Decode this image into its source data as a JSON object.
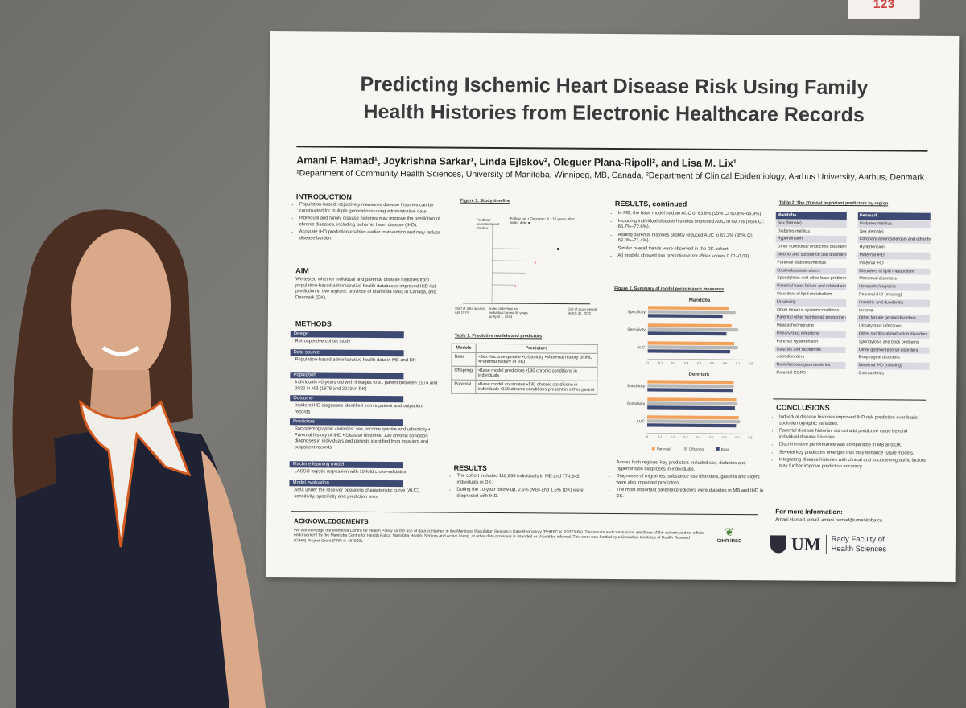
{
  "tag_number": "123",
  "poster": {
    "title_line1": "Predicting Ischemic Heart Disease Risk Using Family",
    "title_line2": "Health Histories from Electronic Healthcare Records",
    "authors": "Amani F. Hamad¹, Joykrishna Sarkar¹, Linda Ejlskov², Oleguer Plana-Ripoll², and Lisa M. Lix¹",
    "affiliation": "¹Department of Community Health Sciences, University of Manitoba, Winnipeg, MB, Canada, ²Department of Clinical Epidemiology, Aarhus University, Aarhus, Denmark",
    "introduction": {
      "heading": "INTRODUCTION",
      "bullets": [
        "Population-based, objectively measured disease histories can be constructed for multiple generations using administrative data.",
        "Individual and family disease histories may improve the prediction of chronic diseases, including ischemic heart disease (IHD).",
        "Accurate IHD prediction enables earlier intervention and may reduce disease burden."
      ]
    },
    "aim": {
      "heading": "AIM",
      "text": "We tested whether individual and parental disease histories from population-based administrative health databases improved IHD risk prediction in two regions: province of Manitoba (MB) in Canada, and Denmark (DK)."
    },
    "methods": {
      "heading": "METHODS",
      "blocks": [
        {
          "head": "Design",
          "text": "Retrospective cohort study"
        },
        {
          "head": "Data source",
          "text": "Population-based administrative health data in MB and DK"
        },
        {
          "head": "Population",
          "text": "Individuals 40 years old with linkages to ≥1 parent between 1974 and 2022 in MB (1978 and 2023 in DK)"
        },
        {
          "head": "Outcome",
          "text": "Incident IHD diagnoses identified from inpatient and outpatient records"
        },
        {
          "head": "Predictors",
          "text": "Sociodemographic variables: sex, income quintile and urbanicity • Parental history of IHD • Disease histories: 130 chronic condition diagnoses in individuals and parents identified from inpatient and outpatient records"
        },
        {
          "head": "Machine learning model",
          "text": "LASSO logistic regression with 10-fold cross-validation"
        },
        {
          "head": "Model evaluation",
          "text": "Area under the receiver operating characteristic curve (AUC), sensitivity, specificity and prediction error"
        }
      ]
    },
    "figure1": {
      "caption": "Figure 1. Study timeline",
      "labels": [
        "Predictor ascertainment window",
        "Follow up: • Outcome: X • 10 years after index date ●",
        "Start of data access Apr 1970",
        "Index date Year an individual turned 40 years or April 1, 1974",
        "End of study period March 31, 2022"
      ]
    },
    "table1": {
      "caption": "Table 1. Predictive models and predictors",
      "headers": [
        "Models",
        "Predictors"
      ],
      "rows": [
        {
          "model": "Base",
          "predictors": "•Sex  •Income quintile  •Urbanicity  •Maternal history of IHD  •Paternal history of IHD"
        },
        {
          "model": "Offspring",
          "predictors": "•Base model predictors  •130 chronic conditions in individuals"
        },
        {
          "model": "Parental",
          "predictors": "•Base model covariates  •130 chronic conditions in individuals  •130 chronic conditions present in either parent"
        }
      ]
    },
    "results": {
      "heading": "RESULTS",
      "bullets": [
        "The cohort included 118,868 individuals in MB and 774,845 individuals in DK.",
        "During the 10-year follow-up, 2.5% (MB) and 1.5% (DK) were diagnosed with IHD."
      ]
    },
    "results_cont": {
      "heading": "RESULTS, continued",
      "bullets": [
        "In MB, the base model had an AUC of 63.8% (95% CI 60.8%–66.9%).",
        "Including individual disease histories improved AUC to 69.7% (95% CI: 66.7%–72.6%).",
        "Adding parental histories slightly reduced AUC to 67.2% (95% CI: 63.0%–71.4%).",
        "Similar overall trends were observed in the DK cohort.",
        "All models showed low prediction error (Brier scores 0.01–0.03)."
      ],
      "after_bullets": [
        "Across both regions, key predictors included sex, diabetes and hypertension diagnoses in individuals.",
        "Diagnoses of migraines, substance use disorders, gastritis and ulcers were also important predictors.",
        "The most important parental predictors were diabetes in MB and IHD in DK."
      ]
    },
    "figure2": {
      "caption": "Figure 2. Summary of model performance measures"
    },
    "table2": {
      "caption": "Table 2. The 20 most important predictors by region",
      "manitoba": [
        "Manitoba",
        "Sex (female)",
        "Diabetes mellitus",
        "Hypertension",
        "Other nutritional/ endocrine disorders",
        "Alcohol and substance use disorders",
        "Parental diabetes mellitus",
        "Gastroduodenal ulcers",
        "Spondylosis and other back problems",
        "Parental heart failure and related conditions",
        "Disorders of lipid metabolism",
        "Urbanicity",
        "Other nervous system conditions",
        "Parental other nutritional/ endocrine disorders",
        "Headache/migraine",
        "Urinary tract infections",
        "Parental hypertension",
        "Gastritis and duodenitis",
        "Joint disorders",
        "Noninfectious gastroenteritis",
        "Parental COPD"
      ],
      "denmark": [
        "Denmark",
        "Diabetes mellitus",
        "Sex (female)",
        "Coronary atherosclerosis and other heart diseases",
        "Hypertension",
        "Maternal IHD",
        "Paternal IHD",
        "Disorders of lipid metabolism",
        "Menstrual disorders",
        "Headache/migraine",
        "Paternal IHD (missing)",
        "Gastritis and duodenitis",
        "Income",
        "Other female genital disorders",
        "Urinary tract infections",
        "Other nutritional/endocrine disorders",
        "Spondylosis and back problems",
        "Other gastrointestinal disorders",
        "Esophageal disorders",
        "Maternal IHD (missing)",
        "Osteoarthritis"
      ]
    },
    "conclusions": {
      "heading": "CONCLUSIONS",
      "bullets": [
        "Individual disease histories improved IHD risk prediction over basic sociodemographic variables.",
        "Parental disease histories did not add predictive value beyond individual disease histories.",
        "Discriminative performance was comparable in MB and DK.",
        "Several key predictors emerged that may enhance future models.",
        "Integrating disease histories with clinical and sociodemographic factors may further improve prediction accuracy."
      ]
    },
    "more_info": {
      "heading": "For more information:",
      "text": "Amani Hamad, email: amani.hamad@umanitoba.ca"
    },
    "acknowledgements": {
      "heading": "ACKNOWLEDGEMENTS",
      "text": "We acknowledge the Manitoba Centre for Health Policy for the use of data contained in the Manitoba Population Research Data Repository (PHRPC #: P2023-66). The results and conclusions are those of the authors and no official endorsement by the Manitoba Centre for Health Policy, Manitoba Health, Seniors and Active Living, or other data providers is intended or should be inferred. This work was funded by a Canadian Institutes of Health Research (CIHR) Project Grant (FRN #: 487890)."
    },
    "logos": {
      "cihr": "CIHR IRSC",
      "um": "UM",
      "rady": "Rady Faculty of Health Sciences"
    }
  },
  "chart_data": [
    {
      "type": "bar",
      "title": "Manitoba",
      "orientation": "horizontal",
      "categories": [
        "Specificity",
        "Sensitivity",
        "AUC"
      ],
      "series": [
        {
          "name": "Parental",
          "values": [
            0.63,
            0.65,
            0.67
          ]
        },
        {
          "name": "Offspring",
          "values": [
            0.68,
            0.7,
            0.7
          ]
        },
        {
          "name": "Base",
          "values": [
            0.58,
            0.61,
            0.64
          ]
        }
      ],
      "xticks": [
        "0",
        "0.1",
        "0.2",
        "0.3",
        "0.4",
        "0.5",
        "0.6",
        "0.7",
        "0.8"
      ],
      "xlim": [
        0,
        0.8
      ]
    },
    {
      "type": "bar",
      "title": "Denmark",
      "orientation": "horizontal",
      "categories": [
        "Specificity",
        "Sensitivity",
        "AUC"
      ],
      "series": [
        {
          "name": "Parental",
          "values": [
            0.67,
            0.69,
            0.71
          ]
        },
        {
          "name": "Offspring",
          "values": [
            0.67,
            0.7,
            0.72
          ]
        },
        {
          "name": "Base",
          "values": [
            0.66,
            0.68,
            0.69
          ]
        }
      ],
      "xticks": [
        "0",
        "0.1",
        "0.2",
        "0.3",
        "0.4",
        "0.5",
        "0.6",
        "0.7",
        "0.8"
      ],
      "xlim": [
        0,
        0.8
      ]
    }
  ],
  "colors": {
    "parental": "#f2a25a",
    "offspring": "#b8b8b8",
    "base": "#3f4a72"
  }
}
